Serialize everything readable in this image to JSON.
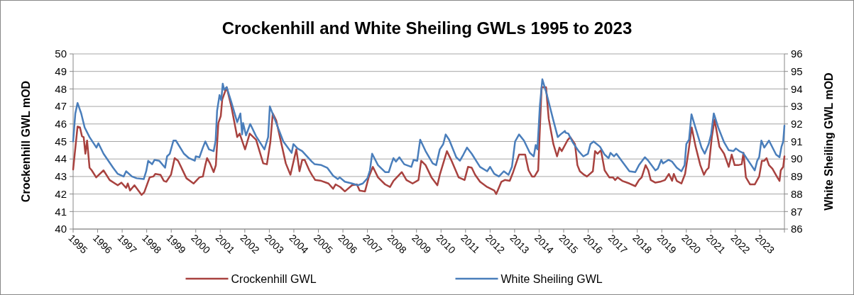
{
  "chart_data": {
    "type": "line",
    "title": "Crockenhill and White Sheiling GWLs 1995 to 2023",
    "ylabel": "Crockenhill GWL mOD",
    "y2label": "White Sheiling GWL mOD",
    "xlim": [
      1995,
      2024
    ],
    "xticks": [
      1995,
      1996,
      1997,
      1998,
      1999,
      2000,
      2001,
      2002,
      2003,
      2004,
      2005,
      2006,
      2007,
      2008,
      2009,
      2010,
      2011,
      2012,
      2013,
      2014,
      2015,
      2016,
      2017,
      2018,
      2019,
      2020,
      2021,
      2022,
      2023,
      {
        "value": 2024,
        "label": null
      }
    ],
    "ylim": [
      40,
      50
    ],
    "yticks": [
      40,
      41,
      42,
      43,
      44,
      45,
      46,
      47,
      48,
      49,
      50
    ],
    "y2lim": [
      86,
      96
    ],
    "y2ticks": [
      86,
      87,
      88,
      89,
      90,
      91,
      92,
      93,
      94,
      95,
      96
    ],
    "grid": "y",
    "legend": "bottom",
    "marker": "none",
    "line_style": "solid",
    "series": [
      {
        "name": "Crockenhill GWL",
        "color": "#a8423f",
        "x": [
          1995.0,
          1995.18,
          1995.28,
          1995.36,
          1995.43,
          1995.5,
          1995.57,
          1995.67,
          1995.76,
          1995.94,
          1996.24,
          1996.49,
          1996.82,
          1996.97,
          1997.16,
          1997.23,
          1997.32,
          1997.5,
          1997.79,
          1997.9,
          1998.12,
          1998.27,
          1998.35,
          1998.56,
          1998.7,
          1998.8,
          1998.99,
          1999.14,
          1999.28,
          1999.62,
          1999.91,
          2000.15,
          2000.29,
          2000.39,
          2000.46,
          2000.58,
          2000.73,
          2000.82,
          2000.92,
          2001.02,
          2001.08,
          2001.26,
          2001.45,
          2001.69,
          2001.79,
          2002.01,
          2002.2,
          2002.46,
          2002.75,
          2002.9,
          2003.04,
          2003.14,
          2003.28,
          2003.67,
          2003.86,
          2004.1,
          2004.23,
          2004.34,
          2004.44,
          2004.63,
          2004.73,
          2004.87,
          2005.12,
          2005.41,
          2005.6,
          2005.7,
          2005.89,
          2006.08,
          2006.37,
          2006.57,
          2006.68,
          2006.9,
          2007.05,
          2007.22,
          2007.43,
          2007.72,
          2007.92,
          2008.06,
          2008.4,
          2008.59,
          2008.84,
          2009.08,
          2009.19,
          2009.37,
          2009.61,
          2009.85,
          2009.95,
          2010.24,
          2010.43,
          2010.72,
          2010.96,
          2011.1,
          2011.25,
          2011.39,
          2011.59,
          2011.88,
          2012.17,
          2012.25,
          2012.31,
          2012.46,
          2012.6,
          2012.8,
          2012.94,
          2013.18,
          2013.43,
          2013.57,
          2013.71,
          2013.81,
          2013.96,
          2014.1,
          2014.28,
          2014.39,
          2014.58,
          2014.73,
          2014.83,
          2014.92,
          2015.17,
          2015.27,
          2015.46,
          2015.56,
          2015.66,
          2015.83,
          2015.95,
          2016.19,
          2016.28,
          2016.38,
          2016.52,
          2016.67,
          2016.86,
          2017.01,
          2017.1,
          2017.2,
          2017.39,
          2017.68,
          2017.92,
          2018.07,
          2018.18,
          2018.34,
          2018.45,
          2018.55,
          2018.74,
          2018.93,
          2019.13,
          2019.29,
          2019.42,
          2019.49,
          2019.61,
          2019.8,
          2019.95,
          2020.09,
          2020.22,
          2020.38,
          2020.57,
          2020.72,
          2020.81,
          2020.91,
          2021.04,
          2021.15,
          2021.35,
          2021.54,
          2021.73,
          2021.85,
          2021.97,
          2022.12,
          2022.26,
          2022.33,
          2022.43,
          2022.6,
          2022.79,
          2022.97,
          2023.08,
          2023.18,
          2023.27,
          2023.37,
          2023.51,
          2023.71,
          2023.8,
          2023.85,
          2023.95,
          2024.0
        ],
        "values": [
          43.4,
          45.85,
          45.8,
          45.3,
          45.25,
          44.3,
          45.05,
          43.5,
          43.35,
          42.95,
          43.35,
          42.8,
          42.5,
          42.65,
          42.35,
          42.6,
          42.2,
          42.5,
          41.95,
          42.1,
          42.95,
          43.0,
          43.15,
          43.1,
          42.75,
          42.7,
          43.1,
          44.05,
          43.9,
          42.9,
          42.6,
          42.95,
          43.0,
          43.65,
          44.05,
          43.75,
          43.25,
          43.65,
          46.05,
          46.45,
          47.4,
          48.1,
          47.0,
          45.25,
          45.45,
          44.55,
          45.45,
          45.1,
          43.75,
          43.7,
          44.95,
          46.6,
          46.2,
          43.75,
          43.1,
          44.55,
          43.3,
          43.95,
          43.95,
          43.35,
          43.1,
          42.8,
          42.75,
          42.6,
          42.3,
          42.55,
          42.4,
          42.15,
          42.5,
          42.55,
          42.2,
          42.15,
          42.95,
          43.55,
          42.95,
          42.55,
          42.4,
          42.75,
          43.25,
          42.8,
          42.6,
          42.8,
          43.9,
          43.65,
          42.95,
          42.5,
          43.1,
          44.45,
          43.9,
          42.95,
          42.8,
          43.55,
          43.5,
          43.1,
          42.7,
          42.4,
          42.2,
          42.0,
          42.2,
          42.7,
          42.8,
          42.75,
          43.25,
          44.25,
          44.25,
          43.35,
          43.0,
          43.0,
          43.35,
          48.1,
          48.1,
          46.3,
          44.85,
          44.15,
          44.65,
          44.45,
          45.1,
          45.25,
          44.85,
          43.65,
          43.3,
          43.1,
          43.0,
          43.3,
          44.45,
          44.3,
          44.5,
          43.35,
          42.95,
          42.95,
          42.8,
          42.95,
          42.75,
          42.6,
          42.45,
          42.8,
          42.95,
          43.65,
          43.35,
          42.8,
          42.65,
          42.7,
          42.8,
          43.15,
          42.75,
          43.15,
          42.75,
          42.6,
          43.15,
          44.45,
          45.8,
          44.7,
          43.65,
          43.1,
          43.35,
          43.5,
          45.25,
          46.25,
          44.7,
          44.3,
          43.55,
          44.25,
          43.65,
          43.65,
          43.7,
          44.35,
          42.95,
          42.55,
          42.55,
          43.0,
          43.9,
          43.9,
          44.05,
          43.65,
          43.45,
          42.95,
          42.75,
          43.35,
          43.55,
          44.15
        ]
      },
      {
        "name": "White Sheiling GWL",
        "color": "#4a7ebb",
        "axis": "y2",
        "x": [
          1995.0,
          1995.09,
          1995.18,
          1995.33,
          1995.47,
          1995.67,
          1995.95,
          1996.03,
          1996.24,
          1996.63,
          1996.82,
          1997.06,
          1997.16,
          1997.4,
          1997.59,
          1997.88,
          1997.98,
          1998.06,
          1998.22,
          1998.32,
          1998.51,
          1998.75,
          1998.83,
          1998.94,
          1999.09,
          1999.19,
          1999.52,
          1999.72,
          1999.96,
          2000.0,
          2000.15,
          2000.29,
          2000.39,
          2000.54,
          2000.73,
          2000.81,
          2000.87,
          2000.97,
          2001.04,
          2001.1,
          2001.16,
          2001.26,
          2001.45,
          2001.69,
          2001.82,
          2001.89,
          2001.93,
          2002.05,
          2002.22,
          2002.46,
          2002.8,
          2002.95,
          2003.02,
          2003.24,
          2003.57,
          2003.91,
          2003.98,
          2004.15,
          2004.34,
          2004.73,
          2004.85,
          2005.12,
          2005.36,
          2005.6,
          2005.79,
          2005.87,
          2006.08,
          2006.37,
          2006.61,
          2006.81,
          2007.0,
          2007.1,
          2007.19,
          2007.43,
          2007.72,
          2007.87,
          2007.97,
          2008.06,
          2008.16,
          2008.3,
          2008.5,
          2008.79,
          2008.88,
          2009.03,
          2009.15,
          2009.37,
          2009.66,
          2009.8,
          2009.95,
          2010.09,
          2010.19,
          2010.33,
          2010.62,
          2010.77,
          2010.91,
          2011.06,
          2011.25,
          2011.59,
          2011.88,
          2012.0,
          2012.17,
          2012.36,
          2012.56,
          2012.75,
          2012.89,
          2013.02,
          2013.18,
          2013.38,
          2013.62,
          2013.78,
          2013.86,
          2013.93,
          2014.03,
          2014.13,
          2014.29,
          2014.58,
          2014.76,
          2014.87,
          2015.05,
          2015.08,
          2015.19,
          2015.37,
          2015.61,
          2015.8,
          2015.99,
          2016.09,
          2016.22,
          2016.48,
          2016.67,
          2016.83,
          2016.91,
          2017.05,
          2017.15,
          2017.39,
          2017.68,
          2017.92,
          2018.07,
          2018.31,
          2018.45,
          2018.74,
          2018.84,
          2018.98,
          2019.05,
          2019.27,
          2019.42,
          2019.61,
          2019.8,
          2019.93,
          2020.0,
          2020.11,
          2020.21,
          2020.38,
          2020.62,
          2020.75,
          2020.91,
          2021.01,
          2021.12,
          2021.3,
          2021.54,
          2021.73,
          2021.92,
          2022.02,
          2022.16,
          2022.31,
          2022.6,
          2022.79,
          2022.89,
          2022.97,
          2023.06,
          2023.18,
          2023.37,
          2023.66,
          2023.8,
          2023.88,
          2023.95,
          2024.0
        ],
        "values": [
          91.0,
          92.6,
          93.2,
          92.6,
          91.8,
          91.25,
          90.65,
          90.9,
          90.3,
          89.5,
          89.15,
          89.0,
          89.3,
          89.0,
          88.9,
          88.85,
          89.3,
          89.9,
          89.7,
          89.95,
          89.9,
          89.5,
          90.15,
          90.3,
          91.05,
          91.05,
          90.3,
          90.05,
          89.9,
          90.15,
          90.1,
          90.65,
          91.0,
          90.55,
          90.45,
          91.05,
          92.75,
          93.65,
          93.35,
          94.3,
          93.95,
          94.1,
          93.25,
          92.1,
          92.6,
          91.4,
          92.05,
          91.35,
          92.0,
          91.3,
          90.55,
          91.25,
          93.0,
          92.2,
          91.0,
          90.35,
          90.85,
          90.6,
          90.45,
          89.85,
          89.7,
          89.65,
          89.5,
          89.05,
          88.85,
          88.95,
          88.7,
          88.6,
          88.5,
          88.6,
          88.9,
          89.35,
          90.3,
          89.65,
          89.25,
          89.25,
          89.7,
          90.05,
          89.85,
          90.1,
          89.7,
          89.55,
          89.95,
          89.9,
          91.1,
          90.45,
          89.75,
          89.65,
          90.55,
          90.85,
          91.4,
          91.1,
          90.1,
          89.9,
          90.25,
          90.65,
          90.3,
          89.55,
          89.3,
          89.55,
          89.15,
          89.0,
          89.3,
          89.1,
          89.55,
          91.0,
          91.4,
          91.05,
          90.35,
          90.15,
          90.8,
          90.55,
          93.05,
          94.55,
          93.8,
          92.2,
          91.25,
          91.4,
          91.6,
          91.5,
          91.45,
          90.95,
          90.45,
          90.15,
          90.3,
          90.85,
          91.0,
          90.7,
          90.25,
          90.05,
          90.35,
          90.15,
          90.3,
          89.85,
          89.3,
          89.25,
          89.65,
          90.1,
          89.9,
          89.35,
          89.45,
          89.95,
          89.75,
          89.95,
          89.85,
          89.5,
          89.3,
          89.65,
          90.85,
          91.1,
          92.55,
          91.75,
          90.65,
          90.3,
          90.85,
          91.4,
          92.6,
          91.8,
          90.95,
          90.5,
          90.45,
          90.6,
          90.45,
          90.35,
          89.75,
          89.35,
          89.9,
          90.1,
          91.05,
          90.65,
          91.05,
          90.25,
          90.1,
          90.7,
          91.0,
          91.9
        ]
      }
    ]
  }
}
